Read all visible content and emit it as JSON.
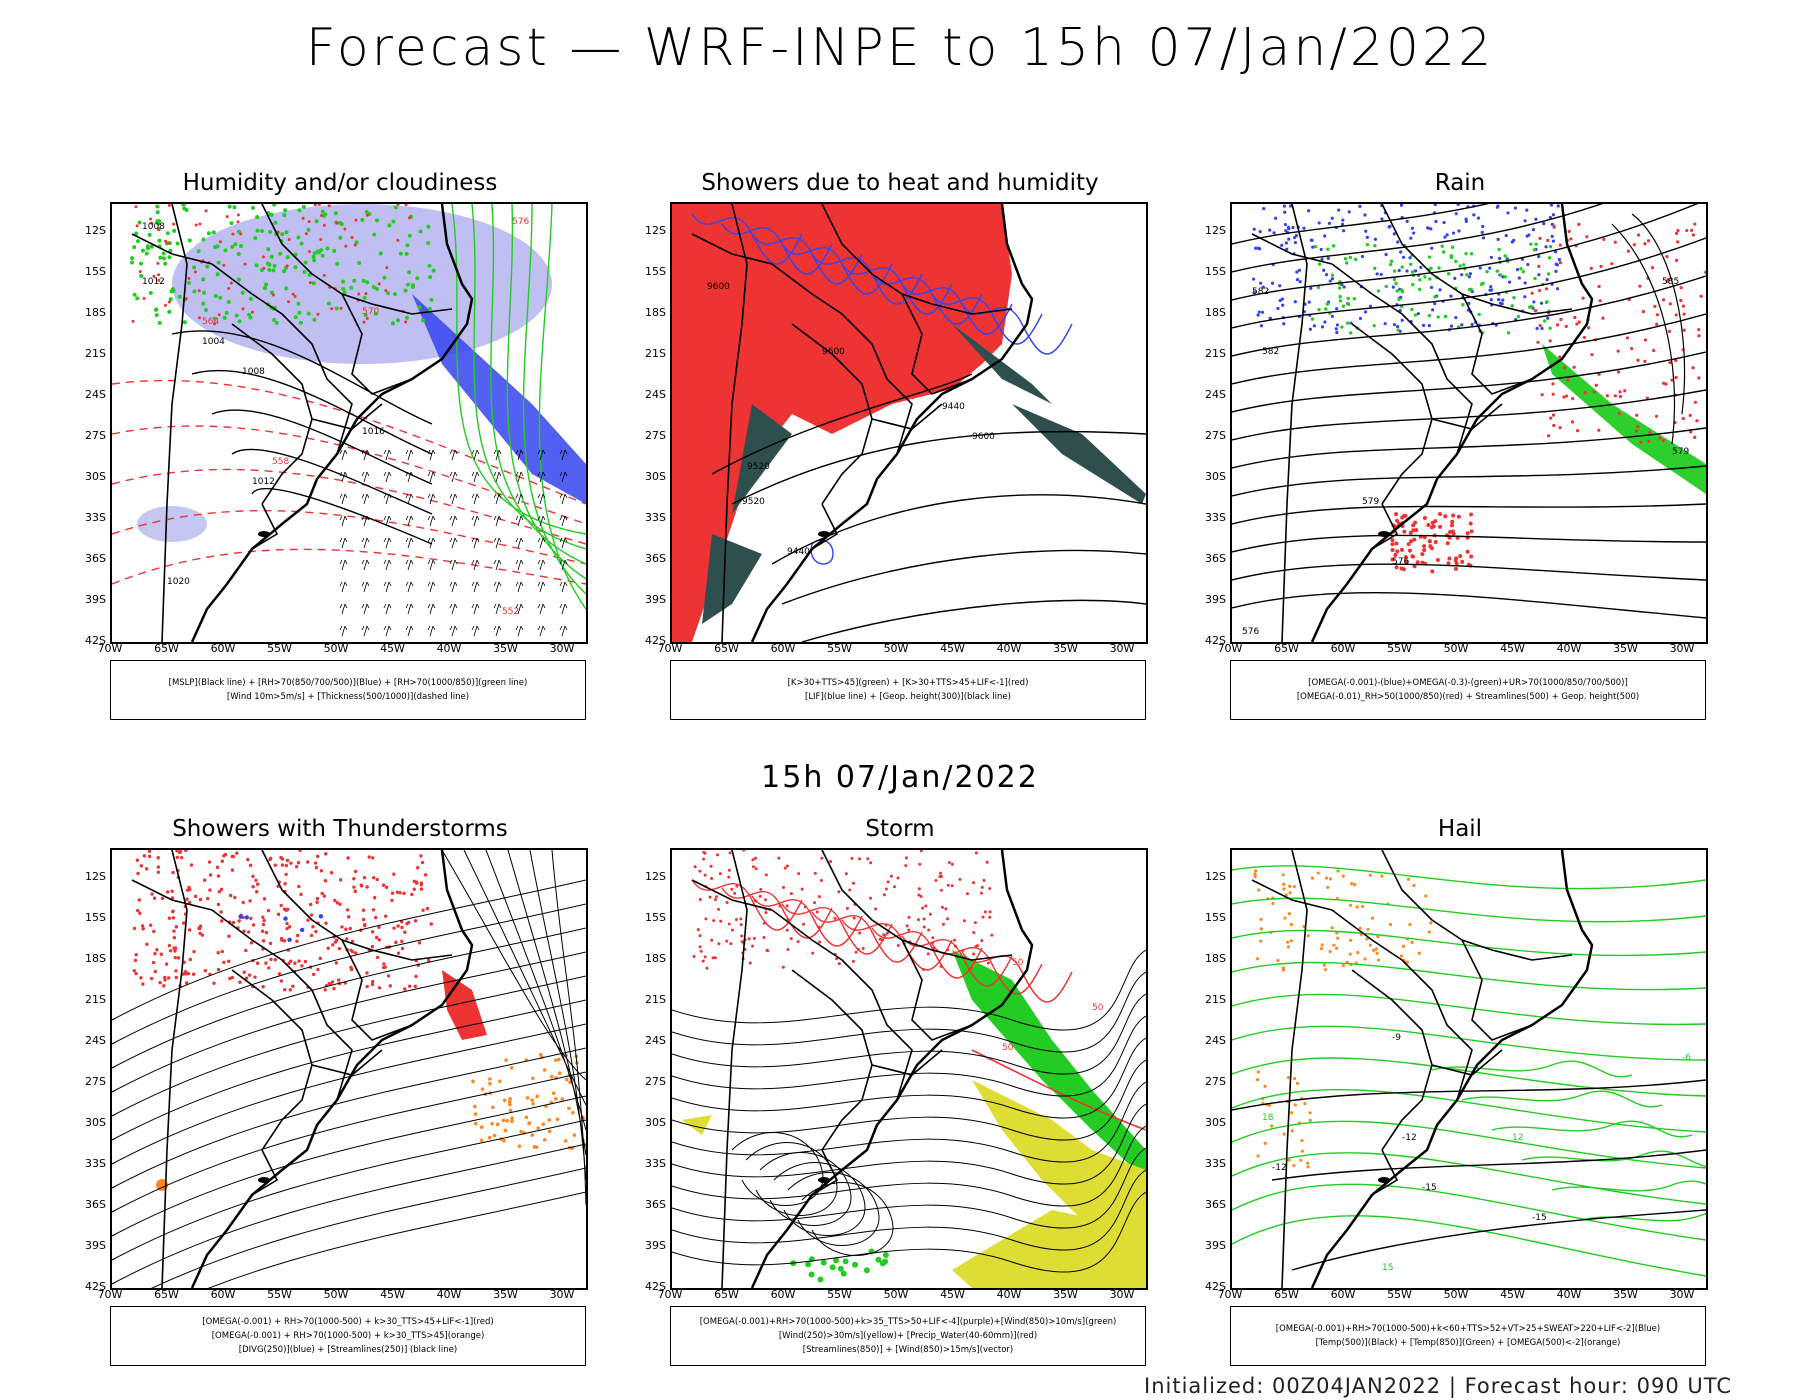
{
  "main_title": "Forecast — WRF-INPE to 15h 07/Jan/2022",
  "mid_title": "15h 07/Jan/2022",
  "footer": "Initialized: 00Z04JAN2022 | Forecast hour: 090 UTC",
  "axes": {
    "lat_labels": [
      "12S",
      "15S",
      "18S",
      "21S",
      "24S",
      "27S",
      "30S",
      "33S",
      "36S",
      "39S",
      "42S"
    ],
    "lon_labels": [
      "70W",
      "65W",
      "60W",
      "55W",
      "50W",
      "45W",
      "40W",
      "35W",
      "30W"
    ]
  },
  "colors": {
    "red": "#ee3333",
    "blue": "#3344ee",
    "green": "#22cc22",
    "darkgreen": "#2f4f4f",
    "orange": "#ff8822",
    "yellow": "#dddd33",
    "lightblue": "#b8b8f0",
    "purple": "#9933cc"
  },
  "panels": [
    {
      "title": "Humidity and/or cloudiness",
      "legend": [
        "[MSLP](Black line) + [RH>70(850/700/500)](Blue) + [RH>70(1000/850)](green line)",
        "[Wind 10m>5m/s] + [Thickness(500/1000)](dashed line)"
      ],
      "contour_labels": [
        "1008",
        "1012",
        "1004",
        "1008",
        "1016",
        "1012",
        "1020",
        "576",
        "570",
        "564",
        "558",
        "552"
      ]
    },
    {
      "title": "Showers due to heat and humidity",
      "legend": [
        "[K>30+TTS>45](green) + [K>30+TTS>45+LIF<-1](red)",
        "[LIF](blue line) + [Geop. height(300)](black line)"
      ],
      "contour_labels": [
        "9600",
        "9600",
        "9520",
        "9440",
        "9520",
        "9600",
        "9440"
      ]
    },
    {
      "title": "Rain",
      "legend": [
        "[OMEGA(-0.001)-(blue)+OMEGA(-0.3)-(green)+UR>70(1000/850/700/500)]",
        "[OMEGA(-0.01)_RH>50(1000/850)(red) + Streamlines(500) + Geop. height(500)"
      ],
      "contour_labels": [
        "585",
        "582",
        "579",
        "576",
        "582",
        "579",
        "576"
      ]
    },
    {
      "title": "Showers with Thunderstorms",
      "legend": [
        "[OMEGA(-0.001) + RH>70(1000-500) + k>30_TTS>45+LIF<-1](red)",
        "[OMEGA(-0.001) + RH>70(1000-500) + k>30_TTS>45](orange)",
        "[DIVG(250)](blue) + [Streamlines(250)] (black line)"
      ],
      "contour_labels": []
    },
    {
      "title": "Storm",
      "legend": [
        "[OMEGA(-0.001)+RH>70(1000-500)+k>35_TTS>50+LIF<-4](purple)+[Wind(850)>10m/s](green)",
        "[Wind(250)>30m/s](yellow)+ [Precip_Water(40-60mm)](red)",
        "[Streamlines(850)] + [Wind(850)>15m/s](vector)"
      ],
      "contour_labels": [
        "50",
        "50",
        "50"
      ]
    },
    {
      "title": "Hail",
      "legend": [
        "[OMEGA(-0.001)+RH>70(1000-500)+k<60+TTS>52+VT>25+SWEAT>220+LIF<-2](Blue)",
        "[Temp(500)](Black) + [Temp(850)](Green) + [OMEGA(500)<-2](orange)"
      ],
      "contour_labels": [
        "-9",
        "-12",
        "-12",
        "-15",
        "-15",
        "-6",
        "12",
        "18",
        "15"
      ]
    }
  ]
}
